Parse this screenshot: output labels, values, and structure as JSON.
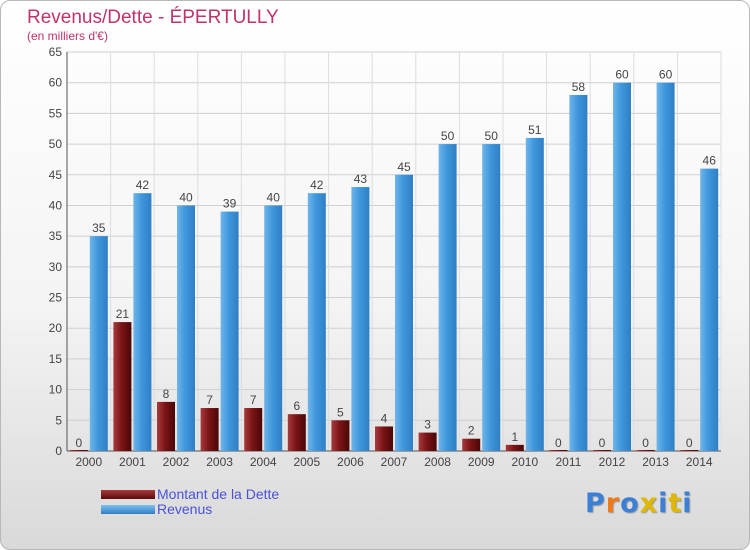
{
  "chart_data": {
    "type": "bar",
    "title": "Revenus/Dette - ÉPERTULLY",
    "subtitle": "(en milliers d'€)",
    "categories": [
      "2000",
      "2001",
      "2002",
      "2003",
      "2004",
      "2005",
      "2006",
      "2007",
      "2008",
      "2009",
      "2010",
      "2011",
      "2012",
      "2013",
      "2014"
    ],
    "series": [
      {
        "name": "Montant de la Dette",
        "color": "#7a1416",
        "values": [
          0,
          21,
          8,
          7,
          7,
          6,
          5,
          4,
          3,
          2,
          1,
          0,
          0,
          0,
          0
        ]
      },
      {
        "name": "Revenus",
        "color": "#3f97dc",
        "values": [
          35,
          42,
          40,
          39,
          40,
          42,
          43,
          45,
          50,
          50,
          51,
          58,
          60,
          60,
          46
        ]
      }
    ],
    "ylim": [
      0,
      65
    ],
    "yticks": [
      0,
      5,
      10,
      15,
      20,
      25,
      30,
      35,
      40,
      45,
      50,
      55,
      60,
      65
    ],
    "grid": true,
    "legend": "bottom-left"
  },
  "logo": {
    "text": "Proxiti",
    "letter_colors": [
      "#3b7fd6",
      "#f07a1a",
      "#3b7fd6",
      "#e0b800",
      "#3b7fd6",
      "#e0b800",
      "#3b7fd6"
    ]
  }
}
